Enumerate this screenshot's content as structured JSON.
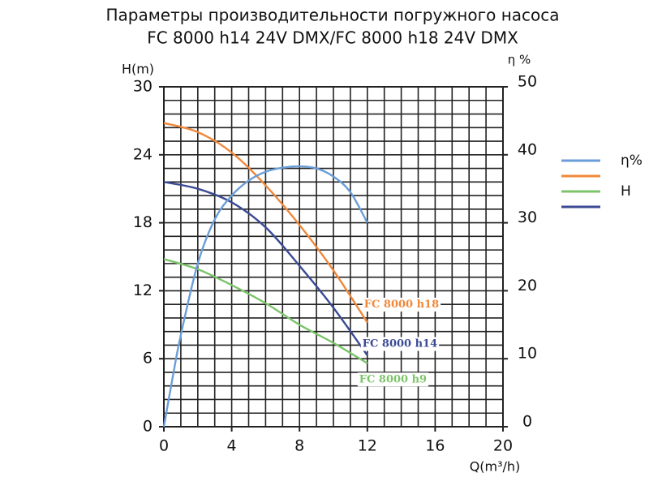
{
  "chart_data": {
    "type": "line",
    "title": [
      "Параметры производительности погружного насоса",
      "FC 8000 h14 24V DMX/FC 8000 h18 24V DMX"
    ],
    "x_label": "Q(m³/h)",
    "y_label": "H(m)",
    "y2_label": "η %",
    "xlim": [
      0,
      20
    ],
    "xticks": [
      0,
      4,
      8,
      12,
      16,
      20
    ],
    "ylim": [
      0,
      30
    ],
    "yticks": [
      0,
      6,
      12,
      18,
      24,
      30
    ],
    "y2lim": [
      0,
      50
    ],
    "y2ticks": [
      0,
      10,
      20,
      30,
      40,
      50
    ],
    "grid": true,
    "grid_step": [
      1,
      1.2
    ],
    "series": [
      {
        "name": "FC 8000 h18",
        "color": "#f0883a",
        "x": [
          0,
          2,
          4,
          6,
          8,
          10,
          12
        ],
        "values": [
          26.8,
          26,
          24.2,
          21.3,
          17.8,
          13.8,
          9.2
        ]
      },
      {
        "name": "FC 8000 h14",
        "color": "#3b4a93",
        "x": [
          0,
          2,
          4,
          6,
          8,
          10,
          12
        ],
        "values": [
          21.6,
          21,
          19.8,
          17.6,
          14.2,
          10.5,
          6.3
        ]
      },
      {
        "name": "FC 8000 h9",
        "color": "#7cc46a",
        "x": [
          0,
          2,
          4,
          6,
          8,
          10,
          12
        ],
        "values": [
          14.8,
          13.9,
          12.5,
          10.9,
          9.0,
          7.4,
          5.6
        ]
      },
      {
        "name": "η",
        "color": "#6a9ed8",
        "axis": "y2",
        "x": [
          0,
          0.5,
          1,
          2,
          3,
          4,
          5,
          6,
          7,
          8,
          9,
          10,
          11,
          12
        ],
        "values": [
          0,
          7,
          13.5,
          24,
          30.5,
          34,
          36.2,
          37.5,
          38.1,
          38.3,
          38,
          36.8,
          34.5,
          30
        ]
      }
    ],
    "legend": [
      {
        "label": "η%",
        "series": [
          3
        ]
      },
      {
        "label": "H",
        "series": [
          0,
          2,
          1
        ]
      }
    ]
  }
}
